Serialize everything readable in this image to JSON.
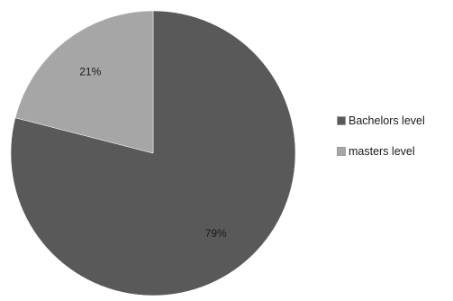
{
  "chart_data": {
    "type": "pie",
    "title": "",
    "start": "top, clockwise",
    "legend_position": "right",
    "series": [
      {
        "name": "Bachelors level",
        "value": 79,
        "label": "79%",
        "color": "#595959"
      },
      {
        "name": "masters level",
        "value": 21,
        "label": "21%",
        "color": "#a6a6a6"
      }
    ]
  }
}
